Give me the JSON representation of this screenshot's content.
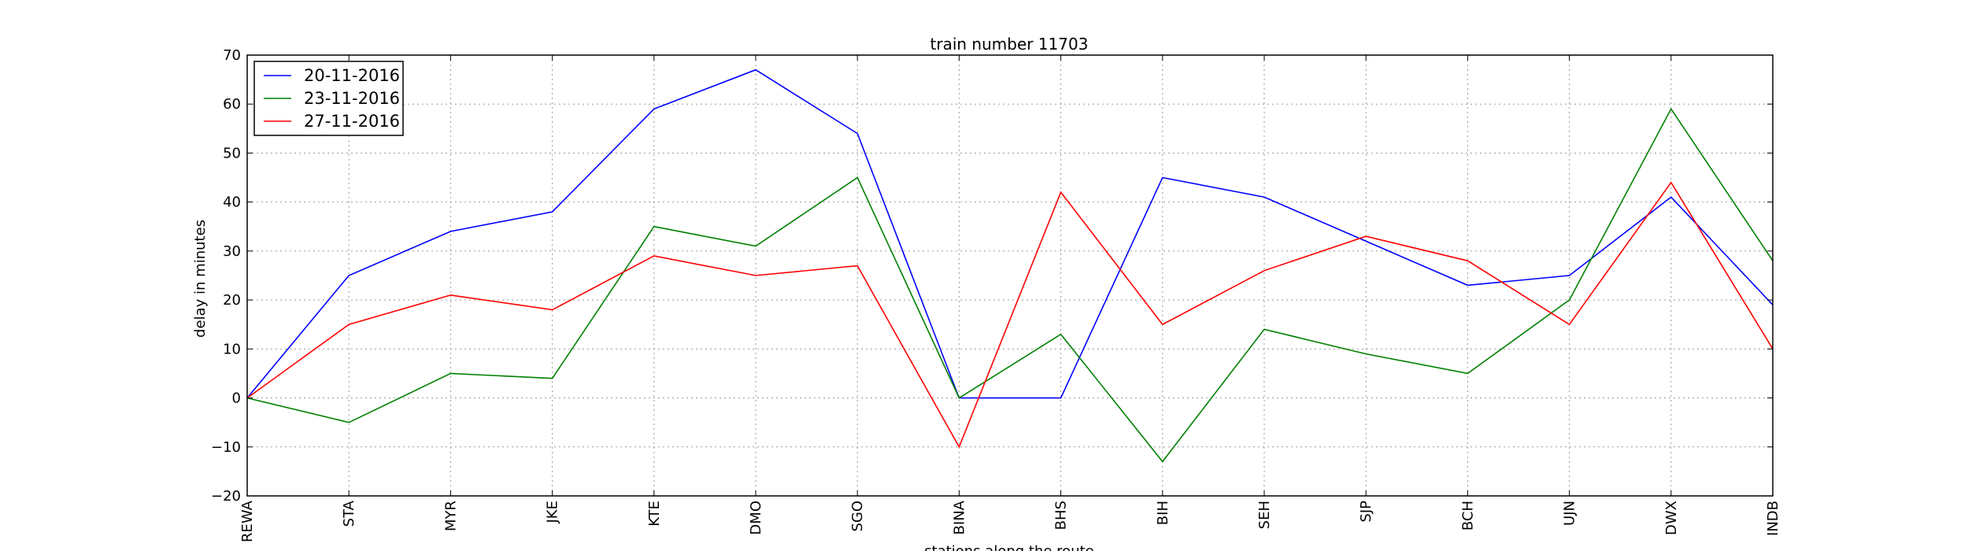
{
  "chart_data": {
    "type": "line",
    "title": "train number 11703",
    "xlabel": "stations along the route",
    "ylabel": "delay in minutes",
    "categories": [
      "REWA",
      "STA",
      "MYR",
      "JKE",
      "KTE",
      "DMO",
      "SGO",
      "BINA",
      "BHS",
      "BIH",
      "SEH",
      "SJP",
      "BCH",
      "UJN",
      "DWX",
      "INDB"
    ],
    "ylim": [
      -20,
      70
    ],
    "yticks": [
      -20,
      -10,
      0,
      10,
      20,
      30,
      40,
      50,
      60,
      70
    ],
    "grid": true,
    "legend_position": "top-left",
    "series": [
      {
        "name": "20-11-2016",
        "color": "#0000ff",
        "values": [
          0,
          25,
          34,
          38,
          59,
          67,
          54,
          0,
          0,
          45,
          41,
          32,
          23,
          25,
          41,
          19
        ]
      },
      {
        "name": "23-11-2016",
        "color": "#008000",
        "values": [
          0,
          -5,
          5,
          4,
          35,
          31,
          45,
          0,
          13,
          -13,
          14,
          9,
          5,
          20,
          59,
          28
        ]
      },
      {
        "name": "27-11-2016",
        "color": "#ff0000",
        "values": [
          0,
          15,
          21,
          18,
          29,
          25,
          27,
          -10,
          42,
          15,
          26,
          33,
          28,
          15,
          44,
          10
        ]
      }
    ]
  }
}
